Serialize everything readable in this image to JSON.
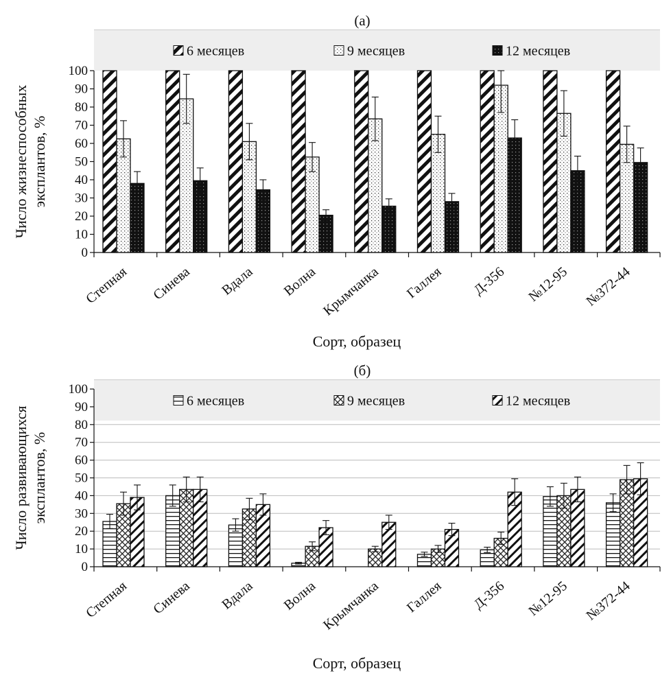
{
  "colors": {
    "bar_stroke": "#111111",
    "legend_bg": "#eeeeee",
    "grid": "#bbbbbb",
    "error_bar": "#111111"
  },
  "chart_data": [
    {
      "panel": "(a)",
      "type": "bar",
      "xlabel": "Сорт, образец",
      "ylabel_lines": [
        "Число жизнеспособных",
        "эксплантов, %"
      ],
      "ylim": [
        0,
        100
      ],
      "yticks": [
        0,
        10,
        20,
        30,
        40,
        50,
        60,
        70,
        80,
        90,
        100
      ],
      "grid": false,
      "legend_position": "top",
      "categories": [
        "Степная",
        "Синева",
        "Вдала",
        "Волна",
        "Крымчанка",
        "Галлея",
        "Д-356",
        "№12-95",
        "№372-44"
      ],
      "series": [
        {
          "name": "6 месяцев",
          "pattern": "diag-wide",
          "values": [
            100,
            100,
            100,
            100,
            100,
            100,
            100,
            100,
            100
          ],
          "errors": [
            0,
            0,
            0,
            0,
            0,
            0,
            0,
            0,
            0
          ]
        },
        {
          "name": "9 месяцев",
          "pattern": "dots",
          "values": [
            62.5,
            84.5,
            61,
            52.5,
            73.5,
            65,
            92,
            76.5,
            59.5
          ],
          "errors": [
            10,
            13.5,
            10,
            8,
            12,
            10,
            15,
            12.5,
            10
          ]
        },
        {
          "name": "12 месяцев",
          "pattern": "dense-dark",
          "values": [
            38,
            39.5,
            34.5,
            20.5,
            25.5,
            28,
            63,
            45,
            49.5
          ],
          "errors": [
            6.5,
            7,
            5.5,
            3,
            4,
            4.5,
            10,
            8,
            8
          ]
        }
      ]
    },
    {
      "panel": "(б)",
      "type": "bar",
      "xlabel": "Сорт, образец",
      "ylabel_lines": [
        "Число развивающихся",
        "эксплантов, %"
      ],
      "ylim": [
        0,
        100
      ],
      "yticks": [
        0,
        10,
        20,
        30,
        40,
        50,
        60,
        70,
        80,
        90,
        100
      ],
      "grid": true,
      "legend_position": "top",
      "categories": [
        "Степная",
        "Синева",
        "Вдала",
        "Волна",
        "Крымчанка",
        "Галлея",
        "Д-356",
        "№12-95",
        "№372-44"
      ],
      "series": [
        {
          "name": "6 месяцев",
          "pattern": "hlines",
          "values": [
            25.5,
            40,
            23.5,
            2,
            0,
            7,
            9.5,
            39.5,
            36
          ],
          "errors": [
            4,
            6,
            3.5,
            0.5,
            0,
            1.2,
            1.5,
            5.5,
            5
          ]
        },
        {
          "name": "9 месяцев",
          "pattern": "crosshatch",
          "values": [
            35.5,
            43.5,
            32.5,
            11.5,
            10,
            10,
            16,
            40,
            49
          ],
          "errors": [
            6.5,
            7,
            6,
            2.5,
            1.5,
            2,
            3.5,
            7,
            8
          ]
        },
        {
          "name": "12 месяцев",
          "pattern": "diag",
          "values": [
            39,
            43.5,
            35,
            22,
            25,
            21,
            42,
            43.5,
            49.5
          ],
          "errors": [
            7,
            7,
            6,
            4,
            4,
            3.5,
            7.5,
            7,
            9
          ]
        }
      ]
    }
  ]
}
